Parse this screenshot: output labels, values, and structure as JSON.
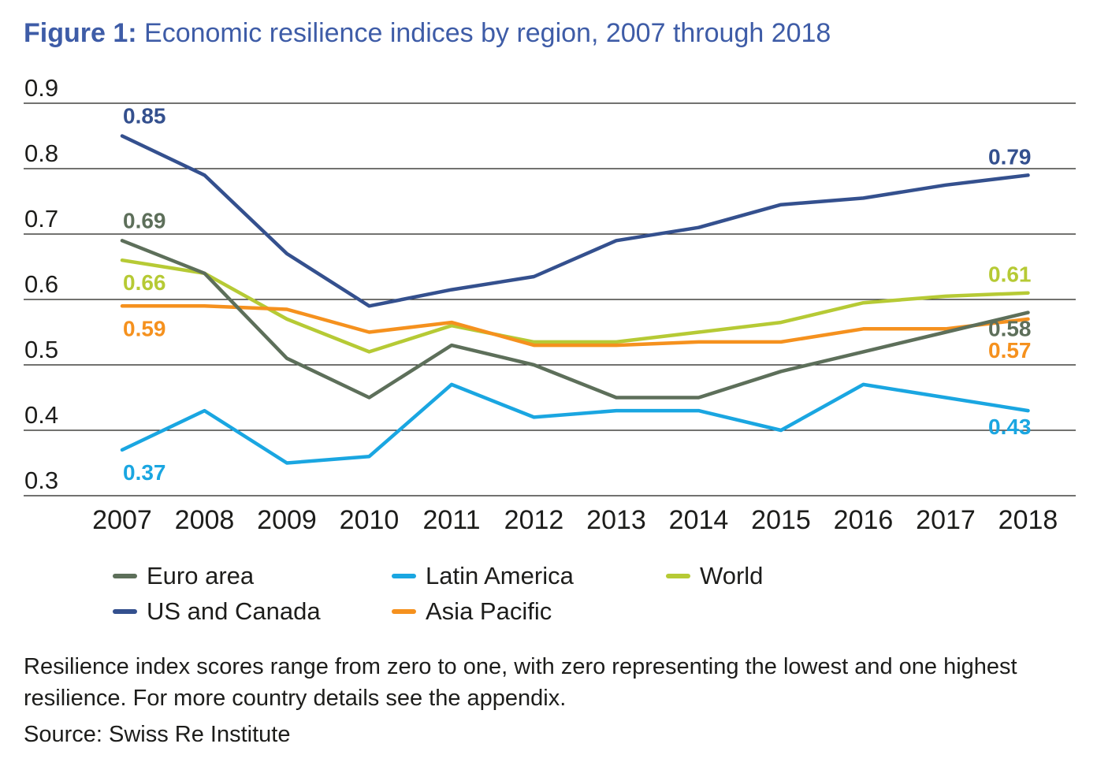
{
  "figure": {
    "label": "Figure 1:",
    "title_rest": " Economic resilience indices by region, 2007 through 2018",
    "title_color": "#3e5ca7"
  },
  "chart_data": {
    "type": "line",
    "categories": [
      2007,
      2008,
      2009,
      2010,
      2011,
      2012,
      2013,
      2014,
      2015,
      2016,
      2017,
      2018
    ],
    "ylim": [
      0.3,
      0.9
    ],
    "yticks": [
      0.9,
      0.8,
      0.7,
      0.6,
      0.5,
      0.4,
      0.3
    ],
    "grid": true,
    "legend_position": "bottom",
    "series": [
      {
        "name": "World",
        "color": "#b6ca35",
        "values": [
          0.66,
          0.64,
          0.57,
          0.52,
          0.56,
          0.535,
          0.535,
          0.55,
          0.565,
          0.595,
          0.605,
          0.61
        ],
        "start_label": "0.66",
        "start_label_pos": "below",
        "end_label": "0.61",
        "end_label_pos": "above"
      },
      {
        "name": "Asia Pacific",
        "color": "#f5911e",
        "values": [
          0.59,
          0.59,
          0.585,
          0.55,
          0.565,
          0.53,
          0.53,
          0.535,
          0.535,
          0.555,
          0.555,
          0.57
        ],
        "start_label": "0.59",
        "start_label_pos": "below",
        "end_label": "0.57",
        "end_label_pos": "below-far"
      },
      {
        "name": "Euro area",
        "color": "#5d6f5a",
        "values": [
          0.69,
          0.64,
          0.51,
          0.45,
          0.53,
          0.5,
          0.45,
          0.45,
          0.49,
          0.52,
          0.55,
          0.58
        ],
        "start_label": "0.69",
        "start_label_pos": "above",
        "end_label": "0.58",
        "end_label_pos": "below"
      },
      {
        "name": "US and Canada",
        "color": "#34508e",
        "values": [
          0.85,
          0.79,
          0.67,
          0.59,
          0.615,
          0.635,
          0.69,
          0.71,
          0.745,
          0.755,
          0.775,
          0.79
        ],
        "start_label": "0.85",
        "start_label_pos": "above",
        "end_label": "0.79",
        "end_label_pos": "above"
      },
      {
        "name": "Latin America",
        "color": "#1aa6e1",
        "values": [
          0.37,
          0.43,
          0.35,
          0.36,
          0.47,
          0.42,
          0.43,
          0.43,
          0.4,
          0.47,
          0.45,
          0.43
        ],
        "start_label": "0.37",
        "start_label_pos": "below",
        "end_label": "0.43",
        "end_label_pos": "below"
      }
    ]
  },
  "legend": {
    "rows": [
      [
        "Euro area",
        "Latin America",
        "World"
      ],
      [
        "US and Canada",
        "Asia Pacific"
      ]
    ]
  },
  "footnote_lines": [
    "Resilience index scores range from zero to one, with zero representing the lowest and one highest",
    "resilience. For more country details see the appendix."
  ],
  "source": "Source: Swiss Re Institute"
}
